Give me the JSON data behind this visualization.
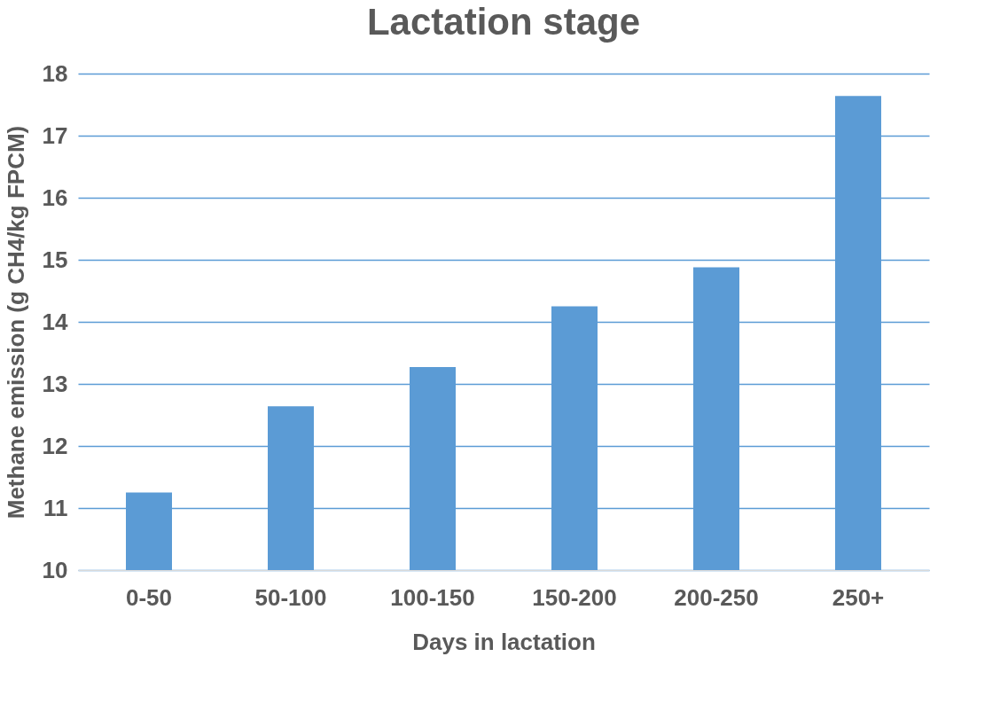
{
  "chart_data": {
    "type": "bar",
    "title": "Lactation stage",
    "xlabel": "Days in lactation",
    "ylabel": "Methane emission (g CH4/kg FPCM)",
    "categories": [
      "0-50",
      "50-100",
      "100-150",
      "150-200",
      "200-250",
      "250+"
    ],
    "values": [
      11.25,
      12.64,
      13.27,
      14.25,
      14.88,
      17.64
    ],
    "color": "#5b9bd5",
    "ylim": [
      10,
      18
    ],
    "yticks": [
      10,
      11,
      12,
      13,
      14,
      15,
      16,
      17,
      18
    ],
    "grid": "y"
  }
}
